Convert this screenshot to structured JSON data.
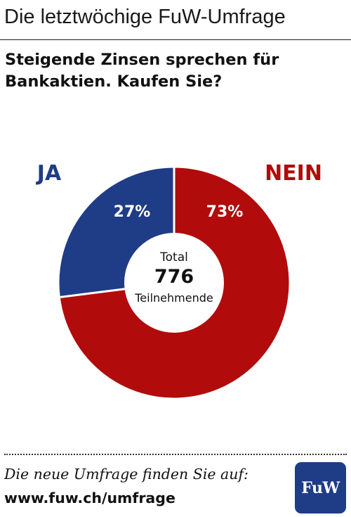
{
  "header": {
    "title": "Die letztwöchige FuW-Umfrage"
  },
  "question": {
    "line1": "Steigende Zinsen sprechen für",
    "line2": "Bankaktien. Kaufen Sie?"
  },
  "colors": {
    "ja": "#1f3c87",
    "nein": "#b10b0b",
    "logo_bg": "#1f3c87"
  },
  "chart_data": {
    "type": "pie",
    "donut": true,
    "categories": [
      "JA",
      "NEIN"
    ],
    "values": [
      27,
      73
    ],
    "value_labels": [
      "27%",
      "73%"
    ],
    "colors": [
      "#1f3c87",
      "#b10b0b"
    ],
    "center": {
      "line1": "Total",
      "line2": "776",
      "line3": "Teilnehmende"
    }
  },
  "footer": {
    "text": "Die neue Umfrage finden Sie auf:",
    "url": "www.fuw.ch/umfrage",
    "logo_text": "FuW"
  }
}
